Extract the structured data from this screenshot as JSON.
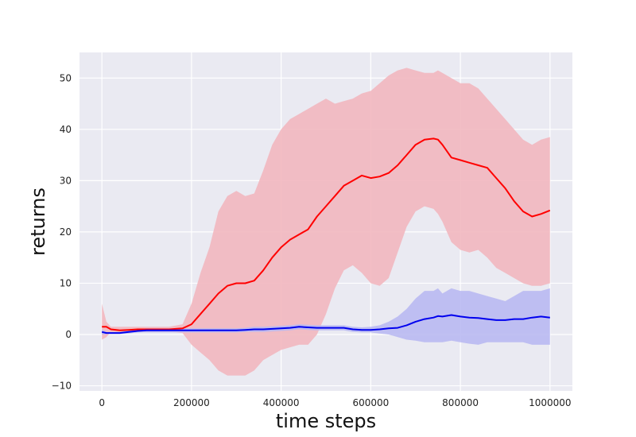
{
  "chart_data": {
    "type": "line",
    "title": "",
    "xlabel": "time steps",
    "ylabel": "returns",
    "xlim": [
      -50000,
      1050000
    ],
    "ylim": [
      -11,
      55
    ],
    "xticks": [
      0,
      200000,
      400000,
      600000,
      800000,
      1000000
    ],
    "xtick_labels": [
      "0",
      "200000",
      "400000",
      "600000",
      "800000",
      "1000000"
    ],
    "yticks": [
      -10,
      0,
      10,
      20,
      30,
      40,
      50
    ],
    "ytick_labels": [
      "−10",
      "0",
      "10",
      "20",
      "30",
      "40",
      "50"
    ],
    "grid": true,
    "legend": "none",
    "colors": {
      "background": "#eaeaf2",
      "grid": "#ffffff",
      "series_red": "#ff0000",
      "band_red": "#f2b7bf",
      "series_blue": "#0000ee",
      "band_blue": "#b9b9f2"
    },
    "series": [
      {
        "color": "red",
        "x": [
          0,
          10000,
          20000,
          40000,
          60000,
          80000,
          100000,
          120000,
          150000,
          180000,
          200000,
          220000,
          240000,
          260000,
          280000,
          300000,
          320000,
          340000,
          360000,
          380000,
          400000,
          420000,
          440000,
          460000,
          480000,
          500000,
          520000,
          540000,
          560000,
          580000,
          600000,
          620000,
          640000,
          660000,
          680000,
          700000,
          720000,
          740000,
          750000,
          760000,
          780000,
          800000,
          820000,
          840000,
          860000,
          880000,
          900000,
          920000,
          940000,
          960000,
          980000,
          1000000
        ],
        "mean": [
          1.5,
          1.5,
          1.0,
          0.8,
          0.9,
          1.0,
          1.0,
          1.0,
          1.0,
          1.2,
          2.0,
          4.0,
          6.0,
          8.0,
          9.5,
          10.0,
          10.0,
          10.5,
          12.5,
          15.0,
          17.0,
          18.5,
          19.5,
          20.5,
          23.0,
          25.0,
          27.0,
          29.0,
          30.0,
          31.0,
          30.5,
          30.8,
          31.5,
          33.0,
          35.0,
          37.0,
          38.0,
          38.2,
          38.0,
          37.0,
          34.5,
          34.0,
          33.5,
          33.0,
          32.5,
          30.5,
          28.5,
          26.0,
          24.0,
          23.0,
          23.5,
          24.2
        ],
        "upper": [
          6.0,
          2.5,
          1.5,
          1.5,
          1.5,
          1.5,
          1.5,
          1.5,
          1.5,
          2.0,
          6.0,
          12.0,
          17.0,
          24.0,
          27.0,
          28.0,
          27.0,
          27.5,
          32.0,
          37.0,
          40.0,
          42.0,
          43.0,
          44.0,
          45.0,
          46.0,
          45.0,
          45.5,
          46.0,
          47.0,
          47.5,
          49.0,
          50.5,
          51.5,
          52.0,
          51.5,
          51.0,
          51.0,
          51.5,
          51.0,
          50.0,
          49.0,
          49.0,
          48.0,
          46.0,
          44.0,
          42.0,
          40.0,
          38.0,
          37.0,
          38.0,
          38.5
        ],
        "lower": [
          -1.0,
          -0.5,
          0.5,
          0.3,
          0.3,
          0.5,
          0.5,
          0.5,
          0.5,
          0.3,
          -2.0,
          -3.5,
          -5.0,
          -7.0,
          -8.0,
          -8.0,
          -8.0,
          -7.0,
          -5.0,
          -4.0,
          -3.0,
          -2.5,
          -2.0,
          -2.0,
          0.0,
          4.0,
          9.0,
          12.5,
          13.5,
          12.0,
          10.0,
          9.5,
          11.0,
          16.0,
          21.0,
          24.0,
          25.0,
          24.5,
          23.5,
          22.0,
          18.0,
          16.5,
          16.0,
          16.5,
          15.0,
          13.0,
          12.0,
          11.0,
          10.0,
          9.5,
          9.5,
          10.0
        ]
      },
      {
        "color": "blue",
        "x": [
          0,
          10000,
          20000,
          40000,
          60000,
          80000,
          100000,
          120000,
          150000,
          180000,
          200000,
          220000,
          240000,
          260000,
          280000,
          300000,
          320000,
          340000,
          360000,
          380000,
          400000,
          420000,
          440000,
          460000,
          480000,
          500000,
          520000,
          540000,
          560000,
          580000,
          600000,
          620000,
          640000,
          660000,
          680000,
          700000,
          720000,
          740000,
          750000,
          760000,
          780000,
          800000,
          820000,
          840000,
          860000,
          880000,
          900000,
          920000,
          940000,
          960000,
          980000,
          1000000
        ],
        "mean": [
          0.5,
          0.3,
          0.3,
          0.3,
          0.5,
          0.7,
          0.8,
          0.8,
          0.8,
          0.8,
          0.8,
          0.8,
          0.8,
          0.8,
          0.8,
          0.8,
          0.9,
          1.0,
          1.0,
          1.1,
          1.2,
          1.3,
          1.5,
          1.4,
          1.3,
          1.3,
          1.3,
          1.3,
          1.0,
          0.9,
          0.9,
          1.0,
          1.2,
          1.3,
          1.8,
          2.5,
          3.0,
          3.3,
          3.6,
          3.5,
          3.8,
          3.5,
          3.3,
          3.2,
          3.0,
          2.8,
          2.8,
          3.0,
          3.0,
          3.3,
          3.5,
          3.3
        ],
        "upper": [
          1.0,
          0.5,
          0.5,
          0.5,
          0.8,
          1.0,
          1.2,
          1.2,
          1.2,
          1.2,
          1.2,
          1.2,
          1.2,
          1.2,
          1.2,
          1.2,
          1.3,
          1.5,
          1.5,
          1.6,
          1.7,
          1.8,
          2.0,
          1.9,
          1.8,
          1.8,
          1.8,
          1.8,
          1.5,
          1.4,
          1.5,
          1.8,
          2.5,
          3.5,
          5.0,
          7.0,
          8.5,
          8.5,
          9.0,
          8.0,
          9.0,
          8.5,
          8.5,
          8.0,
          7.5,
          7.0,
          6.5,
          7.5,
          8.5,
          8.5,
          8.5,
          9.0
        ],
        "lower": [
          0.0,
          0.1,
          0.1,
          0.1,
          0.2,
          0.4,
          0.4,
          0.4,
          0.4,
          0.4,
          0.4,
          0.4,
          0.4,
          0.4,
          0.4,
          0.4,
          0.5,
          0.5,
          0.5,
          0.6,
          0.7,
          0.8,
          1.0,
          0.9,
          0.8,
          0.8,
          0.8,
          0.8,
          0.5,
          0.4,
          0.4,
          0.2,
          0.0,
          -0.5,
          -1.0,
          -1.2,
          -1.5,
          -1.5,
          -1.5,
          -1.5,
          -1.2,
          -1.5,
          -1.8,
          -2.0,
          -1.5,
          -1.5,
          -1.5,
          -1.5,
          -1.5,
          -2.0,
          -2.0,
          -2.0
        ]
      }
    ]
  }
}
